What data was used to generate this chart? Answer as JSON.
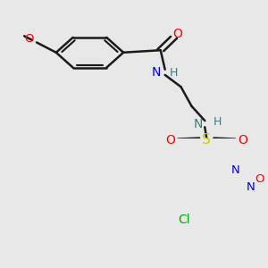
{
  "bg": "#e8e8e8",
  "bond_color": "#1a1a1a",
  "bond_lw": 1.8,
  "atom_colors": {
    "O": "#ff0000",
    "N": "#0000dd",
    "N2": "#3a7a7a",
    "S": "#cccc00",
    "Cl": "#00aa00",
    "C": "#1a1a1a"
  },
  "font_size": 9.5
}
